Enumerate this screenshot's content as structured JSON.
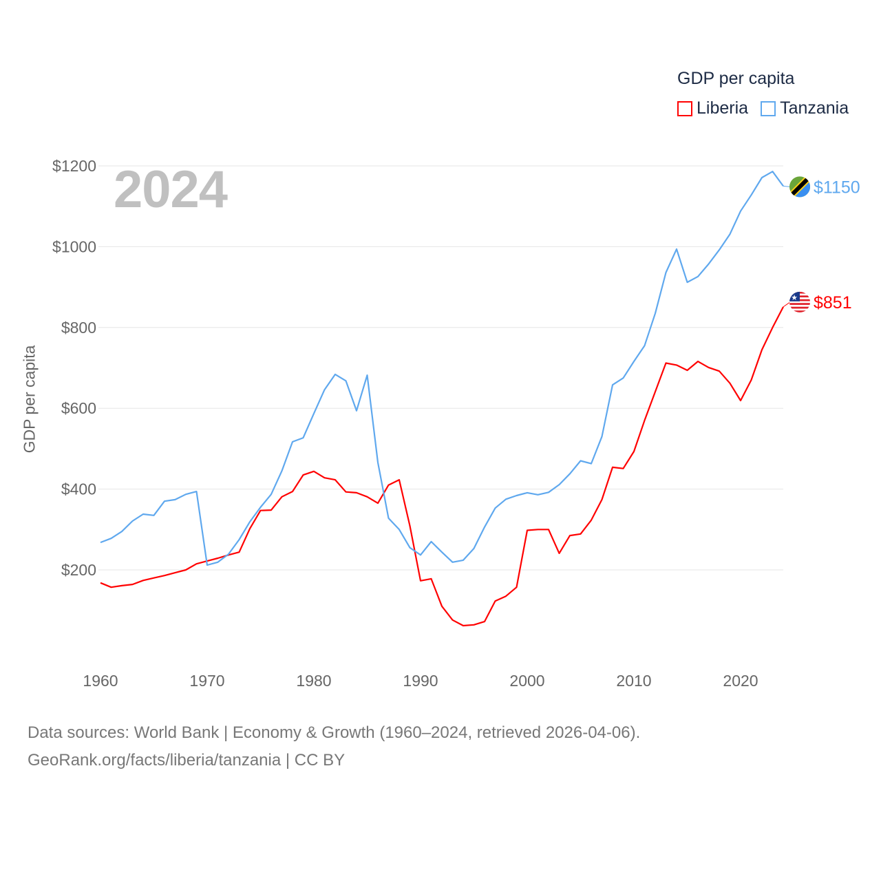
{
  "legend": {
    "title": "GDP per capita",
    "items": [
      {
        "name": "Liberia",
        "color": "#ff0000"
      },
      {
        "name": "Tanzania",
        "color": "#5fa8ee"
      }
    ]
  },
  "year_label": "2024",
  "footer": {
    "line1": "Data sources: World Bank | Economy & Growth (1960–2024, retrieved 2026-04-06).",
    "line2": "GeoRank.org/facts/liberia/tanzania | CC BY"
  },
  "chart_data": {
    "type": "line",
    "title": "GDP per capita",
    "xlabel": "",
    "ylabel": "GDP per capita",
    "xlim": [
      1960,
      2024
    ],
    "ylim": [
      0,
      1200
    ],
    "x_ticks": [
      1960,
      1970,
      1980,
      1990,
      2000,
      2010,
      2020
    ],
    "x_tick_labels": [
      "1960",
      "1970",
      "1980",
      "1990",
      "2000",
      "2010",
      "2020"
    ],
    "y_ticks": [
      200,
      400,
      600,
      800,
      1000,
      1200
    ],
    "y_tick_labels": [
      "$200",
      "$400",
      "$600",
      "$800",
      "$1000",
      "$1200"
    ],
    "grid": true,
    "legend_position": "top-right",
    "x_start": 1960,
    "series": [
      {
        "name": "Liberia",
        "color": "#ff0000",
        "end_label": "$851",
        "flag": "liberia-flag",
        "values": [
          168,
          157,
          161,
          164,
          174,
          180,
          186,
          193,
          200,
          215,
          222,
          229,
          237,
          244,
          302,
          347,
          348,
          381,
          394,
          435,
          444,
          428,
          423,
          393,
          391,
          381,
          365,
          410,
          423,
          309,
          173,
          178,
          110,
          76,
          62,
          64,
          72,
          123,
          135,
          157,
          298,
          300,
          300,
          241,
          285,
          289,
          323,
          374,
          454,
          451,
          493,
          570,
          641,
          712,
          707,
          694,
          716,
          701,
          692,
          662,
          619,
          670,
          745,
          800,
          851
        ]
      },
      {
        "name": "Tanzania",
        "color": "#5fa8ee",
        "end_label": "$1150",
        "flag": "tanzania-flag",
        "values": [
          268,
          278,
          295,
          321,
          338,
          335,
          370,
          374,
          387,
          394,
          212,
          219,
          239,
          275,
          319,
          355,
          387,
          445,
          517,
          527,
          587,
          646,
          684,
          668,
          594,
          682,
          466,
          328,
          300,
          255,
          237,
          270,
          244,
          219,
          224,
          253,
          306,
          353,
          375,
          384,
          391,
          386,
          392,
          411,
          438,
          470,
          463,
          530,
          658,
          675,
          716,
          755,
          835,
          936,
          994,
          912,
          926,
          957,
          992,
          1031,
          1088,
          1128,
          1171,
          1186,
          1150
        ]
      }
    ]
  }
}
